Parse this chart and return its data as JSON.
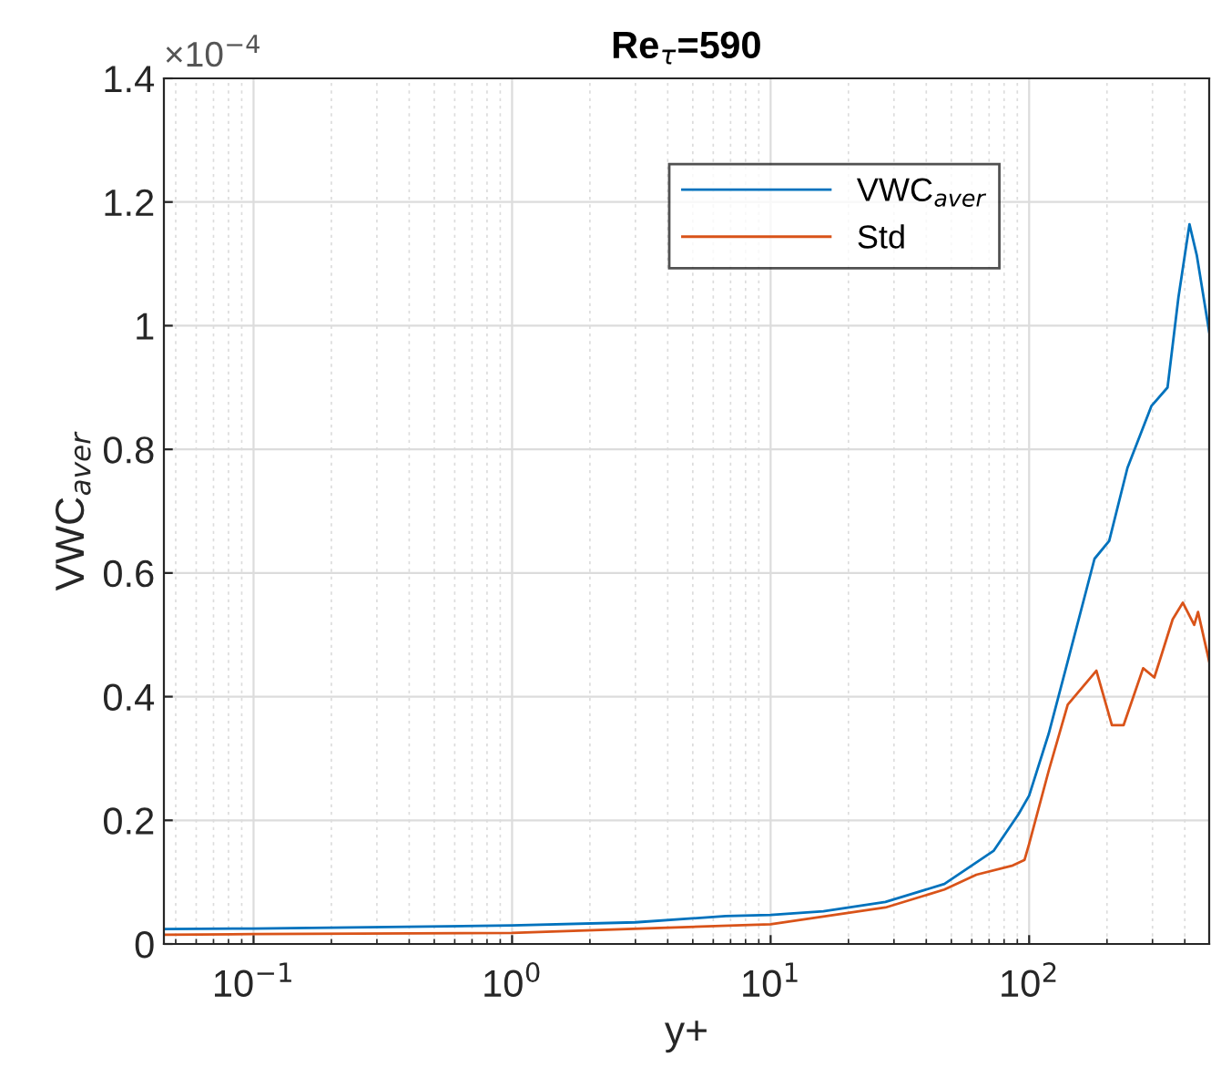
{
  "chart_data": {
    "type": "line",
    "title": "Re$_{τ}$=590",
    "xlabel": "y+",
    "ylabel": "VWC$_{aver}$",
    "annotations": [
      "×10$^{−4}$"
    ],
    "log": "x",
    "grid": true,
    "legend": "top right",
    "xlim": [
      0.045,
      497
    ],
    "xticks": [
      {
        "value": 0.1,
        "label": "10$^{−1}$"
      },
      {
        "value": 1,
        "label": "10$^{0}$"
      },
      {
        "value": 10,
        "label": "10$^{1}$"
      },
      {
        "value": 100,
        "label": "10$^{2}$"
      }
    ],
    "ylim": [
      0,
      1.4
    ],
    "yticks": [
      0,
      0.2,
      0.4,
      0.6,
      0.8,
      1,
      1.2,
      1.4
    ],
    "series": [
      {
        "name": "VWC$_{aver}$",
        "color": "#0072bd",
        "x": [
          0.045,
          0.1,
          1,
          3,
          6.7,
          10,
          16,
          27.8,
          47,
          73,
          91,
          100,
          119,
          141,
          179,
          204,
          240,
          297,
          343,
          378,
          417,
          445,
          497
        ],
        "values": [
          0.024,
          0.025,
          0.03,
          0.035,
          0.045,
          0.047,
          0.053,
          0.068,
          0.097,
          0.151,
          0.21,
          0.24,
          0.34,
          0.457,
          0.623,
          0.652,
          0.77,
          0.87,
          0.9,
          1.046,
          1.164,
          1.114,
          0.99
        ]
      },
      {
        "name": "Std",
        "color": "#d95319",
        "x": [
          0.045,
          0.1,
          1,
          10,
          27.8,
          47,
          62.5,
          86.5,
          96,
          100,
          119,
          141,
          182,
          209,
          232,
          276,
          305,
          359,
          393,
          435,
          450,
          497
        ],
        "values": [
          0.015,
          0.016,
          0.018,
          0.032,
          0.059,
          0.088,
          0.112,
          0.127,
          0.136,
          0.162,
          0.28,
          0.387,
          0.442,
          0.354,
          0.354,
          0.446,
          0.431,
          0.525,
          0.552,
          0.516,
          0.537,
          0.457
        ]
      }
    ]
  }
}
